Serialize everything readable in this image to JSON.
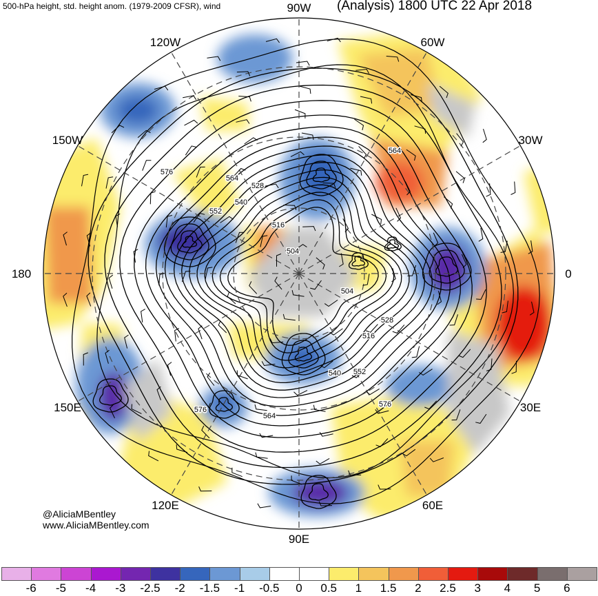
{
  "header": {
    "left": "500-hPa height, std. height anom. (1979-2009 CFSR), wind",
    "right": "(Analysis) 1800 UTC 22 Apr 2018"
  },
  "longitudes": [
    "90W",
    "60W",
    "30W",
    "0",
    "30E",
    "60E",
    "90E",
    "120E",
    "150E",
    "180",
    "150W",
    "120W"
  ],
  "height_labels": [
    "576",
    "564",
    "552",
    "540",
    "528",
    "516",
    "504",
    "504",
    "516",
    "528",
    "540",
    "552",
    "564",
    "576",
    "576",
    "564"
  ],
  "credit": {
    "line1": "@AliciaMBentley",
    "line2": "www.AliciaMBentley.com"
  },
  "colorbar": {
    "labels": [
      "-6",
      "-5",
      "-4",
      "-3",
      "-2.5",
      "-2",
      "-1.5",
      "-1",
      "-0.5",
      "0",
      "0.5",
      "1",
      "1.5",
      "2",
      "2.5",
      "3",
      "4",
      "5",
      "6"
    ],
    "colors": [
      "#e8b0e8",
      "#e07ae0",
      "#cc44d4",
      "#aa18d0",
      "#7426b0",
      "#3e32a0",
      "#3666bc",
      "#6c98d4",
      "#a8cce8",
      "#ffffff",
      "#ffffff",
      "#fcec6c",
      "#f4c45c",
      "#f0984c",
      "#f05e38",
      "#e41a10",
      "#a80a0a",
      "#6e2a2a",
      "#7a6e6e",
      "#aaa0a0"
    ]
  },
  "colors": {
    "land_gray": "#c8c8c8",
    "contour": "#000000"
  }
}
